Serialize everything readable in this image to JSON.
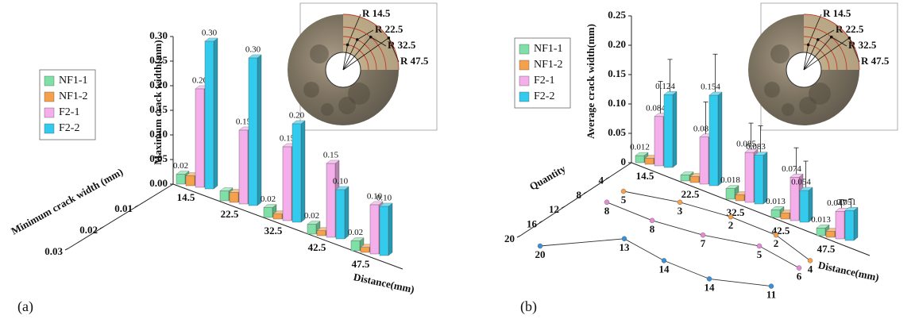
{
  "chart_data": [
    {
      "type": "bar3d",
      "panel_label": "(a)",
      "ylabel": "Maximum crack width(mm)",
      "xlabel": "Distance(mm)",
      "zlabel": "Minimum crack width (mm)",
      "categories": [
        "14.5",
        "22.5",
        "32.5",
        "42.5",
        "47.5"
      ],
      "series": [
        {
          "name": "NF1-1",
          "color": "#7ee0a6",
          "values": [
            0.02,
            0.02,
            0.02,
            0.02,
            0.02
          ],
          "value_labels": [
            "0.02",
            null,
            "0.02",
            "0.02",
            "0.02"
          ]
        },
        {
          "name": "NF1-2",
          "color": "#f5a04a",
          "values": [
            0.02,
            0.02,
            0.01,
            0.01,
            0.01
          ],
          "value_labels": [
            null,
            null,
            null,
            null,
            null
          ]
        },
        {
          "name": "F2-1",
          "color": "#f4aeea",
          "values": [
            0.2,
            0.15,
            0.15,
            0.15,
            0.1
          ],
          "value_labels": [
            "0.20",
            "0.15",
            "0.15",
            "0.15",
            "0.10"
          ]
        },
        {
          "name": "F2-2",
          "color": "#33cbed",
          "values": [
            0.3,
            0.3,
            0.2,
            0.1,
            0.1
          ],
          "value_labels": [
            "0.30",
            "0.30",
            "0.20",
            "0.10",
            "0.10"
          ]
        }
      ],
      "ylim": [
        0,
        0.3
      ],
      "yticks": [
        {
          "value": 0,
          "label": "0.00"
        },
        0.05,
        {
          "value": 0.1,
          "label": "0.10"
        },
        0.15,
        {
          "value": 0.2,
          "label": "0.20"
        },
        0.25,
        {
          "value": 0.3,
          "label": "0.30"
        }
      ],
      "zlim": [
        0,
        0.03
      ],
      "zticks": [
        0.01,
        0.02,
        0.03
      ],
      "inset_labels": [
        "R 14.5",
        "R 22.5",
        "R 32.5",
        "R 47.5"
      ]
    },
    {
      "type": "bar3d",
      "panel_label": "(b)",
      "ylabel": "Average crack width(mm)",
      "xlabel": "Distance(mm)",
      "zlabel": "Quantity",
      "categories": [
        "14.5",
        "22.5",
        "32.5",
        "42.5",
        "47.5"
      ],
      "series": [
        {
          "name": "NF1-1",
          "color": "#7ee0a6",
          "values": [
            0.012,
            0.01,
            0.018,
            0.013,
            0.013
          ],
          "value_labels": [
            "0.012",
            null,
            "0.018",
            "0.013",
            "0.013"
          ]
        },
        {
          "name": "NF1-2",
          "color": "#f5a04a",
          "values": [
            0.01,
            0.01,
            0.01,
            0.01,
            0.01
          ],
          "value_labels": [
            null,
            null,
            null,
            null,
            null
          ]
        },
        {
          "name": "F2-1",
          "color": "#f4aeea",
          "values": [
            0.084,
            0.08,
            0.085,
            0.074,
            0.047
          ],
          "errors": [
            0.06,
            0.06,
            0.05,
            0.05,
            0.02
          ]
        },
        {
          "name": "F2-2",
          "color": "#33cbed",
          "values": [
            0.124,
            0.154,
            0.083,
            0.054,
            0.051
          ],
          "errors": [
            0.06,
            0.07,
            0.05,
            0.05,
            0.02
          ]
        }
      ],
      "ylim": [
        0,
        0.25
      ],
      "yticks": [
        0,
        0.05,
        {
          "value": 0.1,
          "label": "0.10"
        },
        0.15,
        {
          "value": 0.2,
          "label": "0.20"
        },
        0.25
      ],
      "zlim": [
        0,
        20
      ],
      "zticks": [
        4,
        8,
        12,
        16,
        20
      ],
      "quantity": [
        {
          "color": "#3a8fd6",
          "values": [
            20,
            13,
            14,
            14,
            11
          ]
        },
        {
          "color": "#e48bd6",
          "values": [
            8,
            8,
            7,
            5,
            6
          ]
        },
        {
          "color": "#f5a04a",
          "values": [
            5,
            3,
            2,
            2,
            4
          ]
        }
      ],
      "inset_labels": [
        "R 14.5",
        "R 22.5",
        "R 32.5",
        "R 47.5"
      ]
    }
  ]
}
